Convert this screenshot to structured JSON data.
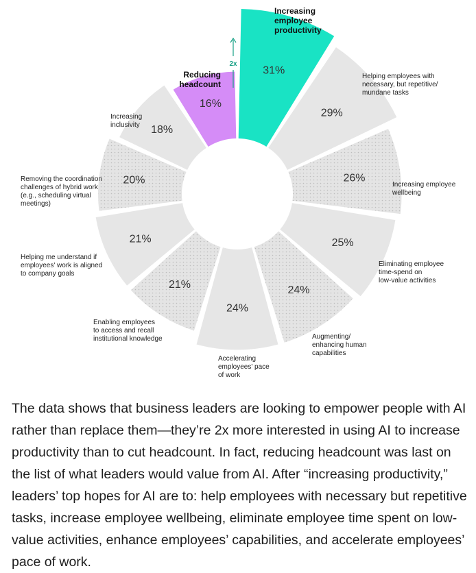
{
  "chart_data": {
    "type": "radial-bar",
    "unit": "%",
    "annotation": "2x",
    "categories": [
      {
        "label": "Increasing employee productivity",
        "value": 31,
        "highlight": "productivity"
      },
      {
        "label": "Helping employees with necessary, but repetitive/ mundane tasks",
        "value": 29
      },
      {
        "label": "Increasing employee wellbeing",
        "value": 26
      },
      {
        "label": "Eliminating employee time-spend on low-value activities",
        "value": 25
      },
      {
        "label": "Augmenting/ enhancing human capabilities",
        "value": 24
      },
      {
        "label": "Accelerating employees' pace of work",
        "value": 24
      },
      {
        "label": "Enabling employees to access and recall institutional knowledge",
        "value": 21
      },
      {
        "label": "Helping me understand if employees' work is aligned to company goals",
        "value": 21
      },
      {
        "label": "Removing the coordination challenges of hybrid work (e.g., scheduling virtual meetings)",
        "value": 20
      },
      {
        "label": "Increasing inclusivity",
        "value": 18
      },
      {
        "label": "Reducing headcount",
        "value": 16,
        "highlight": "headcount"
      }
    ],
    "colors": {
      "productivity": "#19e3c4",
      "headcount": "#d58cf7",
      "default": "#e6e6e6",
      "dotted_default": "#e6e6e6",
      "arrow": "#16a085"
    }
  },
  "body_text": "The data shows that business leaders are looking to empower people with AI rather than replace them—they’re 2x more interested in using AI to increase productivity than to cut headcount. In fact, reducing headcount was last on the list of what leaders would value from AI. After “increasing productivity,” leaders’ top hopes for AI are to: help employees with necessary but repetitive tasks, increase employee wellbeing, eliminate employee time spent on low-value activities, enhance employees’ capabilities, and accelerate employees’ pace of work."
}
